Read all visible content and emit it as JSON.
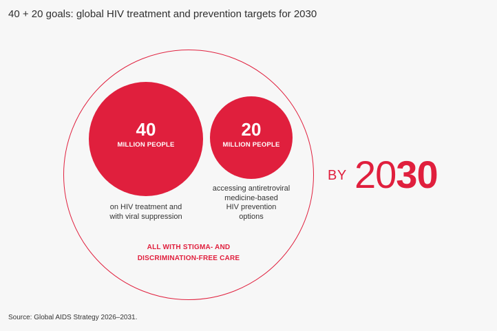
{
  "title": "40 + 20 goals: global HIV treatment and prevention targets for 2030",
  "goals": [
    {
      "number": "40",
      "unit": "MILLION PEOPLE",
      "caption_lines": [
        "on HIV treatment and",
        "with viral suppression"
      ]
    },
    {
      "number": "20",
      "unit": "MILLION PEOPLE",
      "caption_lines": [
        "accessing antiretroviral",
        "medicine-based",
        "HIV prevention",
        "options"
      ]
    }
  ],
  "care_lines": [
    "ALL WITH STIGMA- AND",
    "DISCRIMINATION-FREE CARE"
  ],
  "by_label": "BY",
  "year_light": "20",
  "year_bold": "30",
  "source": "Source: Global AIDS Strategy 2026–2031.",
  "colors": {
    "accent": "#e01f3d",
    "background": "#f7f7f7",
    "text": "#333333"
  }
}
